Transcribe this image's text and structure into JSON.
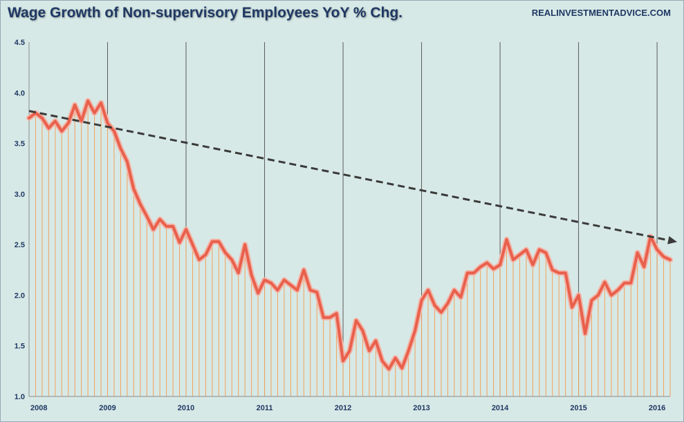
{
  "title": "Wage Growth of Non-supervisory Employees YoY % Chg.",
  "source": "REALINVESTMENTADVICE.COM",
  "colors": {
    "background": "#d7e9e6",
    "series": "#e8604c",
    "series_glow": "#f3b3a6",
    "drop_lines": "#f3a05a",
    "trend": "#3a3a3a",
    "year_gridlines": "#5a5a5a",
    "text": "#1f3864"
  },
  "chart_data": {
    "type": "line",
    "title": "Wage Growth of Non-supervisory Employees YoY % Chg.",
    "xlabel": "",
    "ylabel": "",
    "x_tick_labels": [
      "2008",
      "2009",
      "2010",
      "2011",
      "2012",
      "2013",
      "2014",
      "2015",
      "2016"
    ],
    "y_ticks": [
      "1.0",
      "1.5",
      "2.0",
      "2.5",
      "3.0",
      "3.5",
      "4.0",
      "4.5"
    ],
    "ylim": [
      1.0,
      4.5
    ],
    "x_range": [
      "2008-01",
      "2016-03"
    ],
    "grid": "vertical year lines",
    "legend": "none",
    "series": [
      {
        "start": "2008-01",
        "frequency": "monthly",
        "values": [
          3.75,
          3.8,
          3.75,
          3.65,
          3.72,
          3.62,
          3.7,
          3.88,
          3.72,
          3.92,
          3.8,
          3.9,
          3.7,
          3.62,
          3.45,
          3.32,
          3.05,
          2.9,
          2.78,
          2.65,
          2.75,
          2.68,
          2.68,
          2.52,
          2.65,
          2.5,
          2.35,
          2.4,
          2.53,
          2.53,
          2.42,
          2.35,
          2.22,
          2.5,
          2.2,
          2.02,
          2.15,
          2.12,
          2.05,
          2.15,
          2.1,
          2.05,
          2.25,
          2.05,
          2.03,
          1.78,
          1.78,
          1.82,
          1.35,
          1.45,
          1.75,
          1.65,
          1.45,
          1.55,
          1.35,
          1.27,
          1.38,
          1.28,
          1.45,
          1.65,
          1.95,
          2.05,
          1.9,
          1.83,
          1.92,
          2.05,
          1.98,
          2.22,
          2.22,
          2.28,
          2.32,
          2.26,
          2.3,
          2.55,
          2.35,
          2.4,
          2.45,
          2.3,
          2.45,
          2.42,
          2.25,
          2.22,
          2.22,
          1.88,
          2.0,
          1.62,
          1.95,
          2.0,
          2.13,
          2.0,
          2.05,
          2.12,
          2.12,
          2.42,
          2.28,
          2.58,
          2.45,
          2.38,
          2.35
        ]
      }
    ],
    "trend_line": {
      "from": [
        "2008-01",
        3.82
      ],
      "to": [
        "2016-03",
        2.54
      ],
      "style": "dashed",
      "arrow": true
    }
  }
}
